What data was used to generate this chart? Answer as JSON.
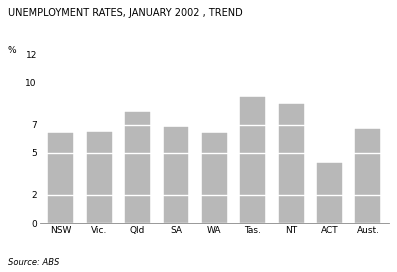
{
  "title": "UNEMPLOYMENT RATES, JANUARY 2002 , TREND",
  "ylabel": "%",
  "source": "Source: ABS",
  "categories": [
    "NSW",
    "Vic.",
    "Qld",
    "SA",
    "WA",
    "Tas.",
    "NT",
    "ACT",
    "Aust."
  ],
  "values": [
    6.4,
    6.5,
    7.9,
    6.8,
    6.4,
    9.0,
    8.5,
    4.3,
    6.7
  ],
  "bar_color": "#b8b8b8",
  "grid_color": "#ffffff",
  "bg_color": "#ffffff",
  "ylim": [
    0,
    12
  ],
  "yticks": [
    0,
    2,
    5,
    7,
    10,
    12
  ],
  "title_fontsize": 7.0,
  "tick_fontsize": 6.5,
  "source_fontsize": 6.0,
  "ylabel_fontsize": 6.5
}
